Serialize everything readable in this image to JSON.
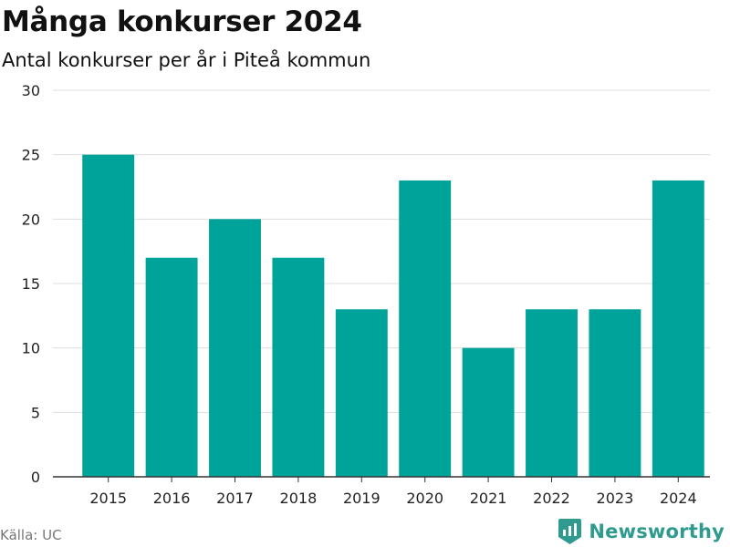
{
  "header": {
    "title": "Många konkurser 2024",
    "subtitle": "Antal konkurser per år i Piteå kommun"
  },
  "footer": {
    "source": "Källa: UC",
    "brand": "Newsworthy"
  },
  "colors": {
    "bar": "#00a39a",
    "grid": "#dddddd",
    "axis": "#333333",
    "brand": "#2f9a8f"
  },
  "chart_data": {
    "type": "bar",
    "title": "Många konkurser 2024",
    "subtitle": "Antal konkurser per år i Piteå kommun",
    "categories": [
      "2015",
      "2016",
      "2017",
      "2018",
      "2019",
      "2020",
      "2021",
      "2022",
      "2023",
      "2024"
    ],
    "values": [
      25,
      17,
      20,
      17,
      13,
      23,
      10,
      13,
      13,
      23
    ],
    "ylim": [
      0,
      30
    ],
    "yticks": [
      0,
      5,
      10,
      15,
      20,
      25,
      30
    ],
    "grid": true,
    "legend": "none"
  }
}
